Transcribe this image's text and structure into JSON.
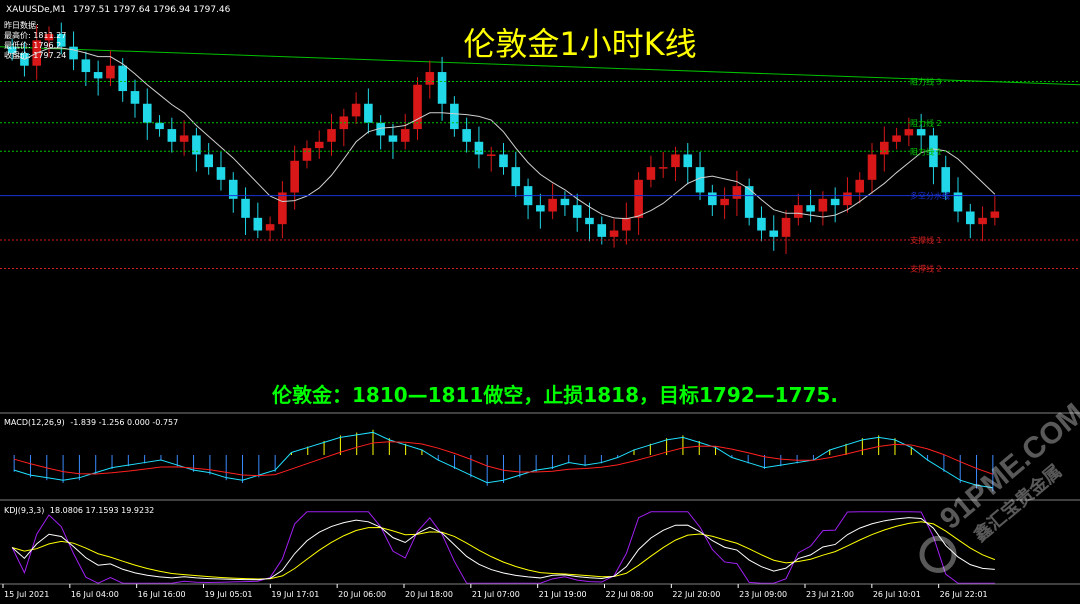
{
  "window": {
    "title": "XAUUSDe,M1",
    "ohlc": "1797.51 1797.64 1796.94 1797.46"
  },
  "info_box": [
    "昨日数据:",
    "最高价: 1811.27",
    "最低价: 1796.2",
    "收盘价: 1797.24"
  ],
  "chart_title": "伦敦金1小时K线",
  "strategy_text": "伦敦金：1810—1811做空，止损1818，目标1792—1775.",
  "watermark": {
    "brand": "91PME.COM",
    "subtitle": "鑫汇宝贵金属"
  },
  "colors": {
    "title": "#ffff00",
    "strategy": "#00ff00",
    "resistance": "#00c000",
    "support": "#d02020",
    "pivot": "#1a34d8",
    "bull_candle": "#d81818",
    "bear_candle": "#20d8e8",
    "macd_signal": "#ff2020",
    "macd_line": "#20e0ff",
    "kdj_k": "#ffffff",
    "kdj_d": "#ffff00",
    "kdj_j": "#a020f0"
  },
  "chart_data": {
    "type": "candlestick",
    "symbol": "XAUUSDe",
    "timeframe": "H1",
    "price_range": [
      1770,
      1832
    ],
    "levels": [
      {
        "label": "阻力线 3",
        "price": 1821.5,
        "kind": "resistance"
      },
      {
        "label": "阻力线 2",
        "price": 1815.0,
        "kind": "resistance"
      },
      {
        "label": "阻力线 1",
        "price": 1810.5,
        "kind": "resistance"
      },
      {
        "label": "多空分水线",
        "price": 1803.5,
        "kind": "pivot"
      },
      {
        "label": "支撑线 1",
        "price": 1796.5,
        "kind": "support"
      },
      {
        "label": "支撑线 2",
        "price": 1792.0,
        "kind": "support"
      }
    ],
    "long_trendline": {
      "from": 1827.0,
      "to": 1821.0
    },
    "close_series": [
      1826,
      1824,
      1828,
      1829,
      1827,
      1825,
      1823,
      1822,
      1824,
      1820,
      1818,
      1815,
      1814,
      1812,
      1813,
      1810,
      1808,
      1806,
      1803,
      1800,
      1798,
      1799,
      1804,
      1809,
      1811,
      1812,
      1814,
      1816,
      1818,
      1815,
      1813,
      1812,
      1814,
      1821,
      1823,
      1818,
      1814,
      1812,
      1810,
      1810,
      1808,
      1805,
      1802,
      1801,
      1803,
      1802,
      1800,
      1799,
      1797,
      1798,
      1800,
      1806,
      1808,
      1808,
      1810,
      1808,
      1804,
      1802,
      1803,
      1805,
      1800,
      1798,
      1797,
      1800,
      1802,
      1801,
      1803,
      1802,
      1804,
      1806,
      1810,
      1812,
      1813,
      1814,
      1813,
      1808,
      1804,
      1801,
      1799,
      1800,
      1801
    ],
    "macd_hist": [
      -0.6,
      -0.8,
      -0.9,
      -1.0,
      -0.9,
      -0.7,
      -0.5,
      -0.4,
      -0.3,
      -0.2,
      -0.4,
      -0.6,
      -0.7,
      -0.9,
      -1.0,
      -0.8,
      -0.6,
      0.1,
      0.3,
      0.5,
      0.7,
      0.8,
      0.9,
      0.6,
      0.4,
      0.2,
      -0.2,
      -0.5,
      -0.8,
      -1.1,
      -1.0,
      -0.8,
      -0.6,
      -0.5,
      -0.3,
      -0.4,
      -0.3,
      -0.1,
      0.2,
      0.4,
      0.6,
      0.7,
      0.5,
      0.3,
      -0.1,
      -0.3,
      -0.5,
      -0.4,
      -0.3,
      -0.2,
      0.2,
      0.4,
      0.6,
      0.7,
      0.6,
      0.3,
      -0.2,
      -0.6,
      -1.0,
      -1.2,
      -1.3
    ],
    "macd": {
      "label": "MACD(12,26,9)",
      "values": "-1.839 -1.256 0.000 -0.757"
    },
    "kdj": {
      "label": "KDJ(9,3,3)",
      "values": "18.0806 17.1593 19.9232"
    },
    "x_ticks": [
      "15 Jul 2021",
      "16 Jul 04:00",
      "16 Jul 16:00",
      "19 Jul 05:01",
      "19 Jul 17:01",
      "20 Jul 06:00",
      "20 Jul 18:00",
      "21 Jul 07:00",
      "21 Jul 19:00",
      "22 Jul 08:00",
      "22 Jul 20:00",
      "23 Jul 09:00",
      "23 Jul 21:00",
      "26 Jul 10:01",
      "26 Jul 22:01"
    ]
  }
}
